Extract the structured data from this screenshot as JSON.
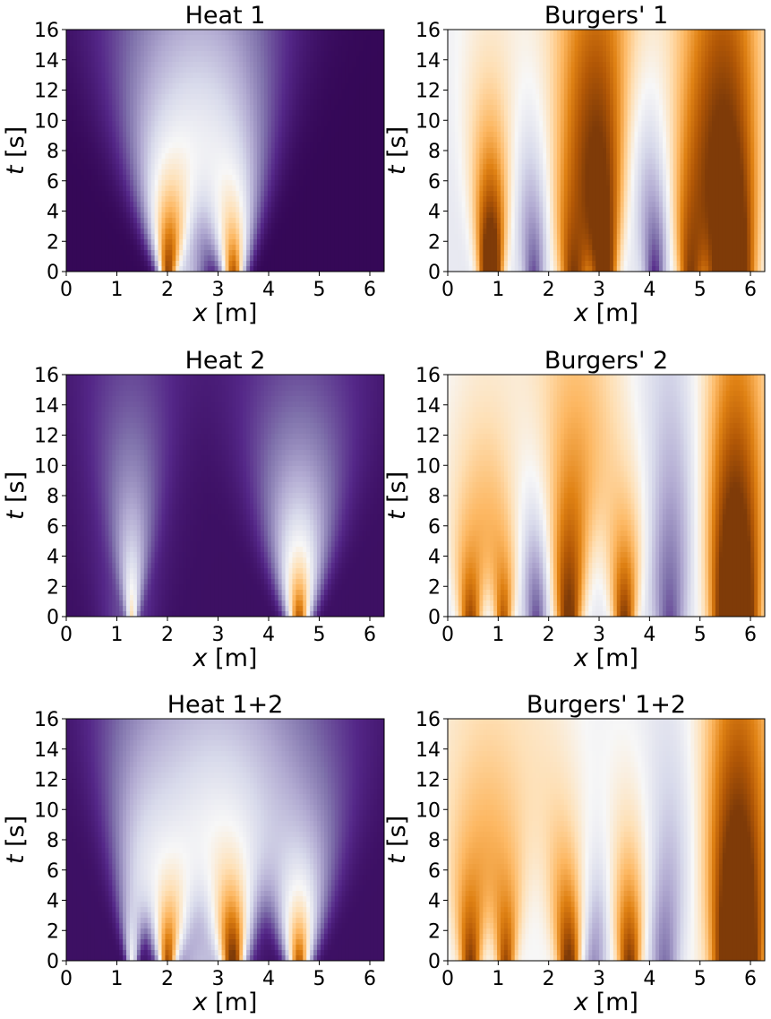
{
  "figure": {
    "colormap": [
      "#2d004b",
      "#542788",
      "#8073ac",
      "#b2abd2",
      "#d8daeb",
      "#f7f7f7",
      "#fee0b6",
      "#fdb863",
      "#e08214",
      "#b35806",
      "#7f3b08"
    ]
  },
  "chart_data": [
    {
      "type": "heatmap",
      "title": "Heat 1",
      "xlabel_var": "x",
      "xlabel_unit": "[m]",
      "ylabel_var": "t",
      "ylabel_unit": "[s]",
      "xlim": [
        0,
        6.283
      ],
      "ylim": [
        0,
        16
      ],
      "xticks": [
        0,
        1,
        2,
        3,
        4,
        5,
        6
      ],
      "yticks": [
        0,
        2,
        4,
        6,
        8,
        10,
        12,
        14,
        16
      ],
      "field": {
        "base": 0.02,
        "bumps": [
          {
            "x": 2.0,
            "amp": 0.78,
            "w0": 0.17,
            "grow": 0.07
          },
          {
            "x": 3.3,
            "amp": 0.88,
            "w0": 0.22,
            "grow": 0.06
          },
          {
            "x": 2.35,
            "amp": 0.35,
            "w0": 0.4,
            "grow": 0.08
          }
        ]
      }
    },
    {
      "type": "heatmap",
      "title": "Burgers' 1",
      "xlabel_var": "x",
      "xlabel_unit": "[m]",
      "ylabel_var": "t",
      "ylabel_unit": "[s]",
      "xlim": [
        0,
        6.283
      ],
      "ylim": [
        0,
        16
      ],
      "xticks": [
        0,
        1,
        2,
        3,
        4,
        5,
        6
      ],
      "yticks": [
        0,
        2,
        4,
        6,
        8,
        10,
        12,
        14,
        16
      ],
      "field": {
        "base": 0.45,
        "bumps": [
          {
            "x": 0.85,
            "amp": 0.85,
            "w0": 0.22,
            "grow": 0.03
          },
          {
            "x": 2.5,
            "amp": 0.55,
            "w0": 0.3,
            "grow": 0.04
          },
          {
            "x": 3.1,
            "amp": 0.7,
            "w0": 0.25,
            "grow": 0.03
          },
          {
            "x": 4.8,
            "amp": 0.5,
            "w0": 0.25,
            "grow": 0.04
          },
          {
            "x": 5.6,
            "amp": 0.95,
            "w0": 0.45,
            "grow": 0.02
          },
          {
            "x": 4.1,
            "amp": -0.35,
            "w0": 0.2,
            "grow": 0.03
          },
          {
            "x": 1.7,
            "amp": -0.3,
            "w0": 0.2,
            "grow": 0.03
          }
        ]
      }
    },
    {
      "type": "heatmap",
      "title": "Heat 2",
      "xlabel_var": "x",
      "xlabel_unit": "[m]",
      "ylabel_var": "t",
      "ylabel_unit": "[s]",
      "xlim": [
        0,
        6.283
      ],
      "ylim": [
        0,
        16
      ],
      "xticks": [
        0,
        1,
        2,
        3,
        4,
        5,
        6
      ],
      "yticks": [
        0,
        2,
        4,
        6,
        8,
        10,
        12,
        14,
        16
      ],
      "field": {
        "base": 0.04,
        "bumps": [
          {
            "x": 4.6,
            "amp": 0.85,
            "w0": 0.22,
            "grow": 0.07
          },
          {
            "x": 1.3,
            "amp": 0.45,
            "w0": 0.1,
            "grow": 0.05
          },
          {
            "x": 1.2,
            "amp": 0.12,
            "w0": 0.5,
            "grow": 0.05
          }
        ]
      }
    },
    {
      "type": "heatmap",
      "title": "Burgers' 2",
      "xlabel_var": "x",
      "xlabel_unit": "[m]",
      "ylabel_var": "t",
      "ylabel_unit": "[s]",
      "xlim": [
        0,
        6.283
      ],
      "ylim": [
        0,
        16
      ],
      "xticks": [
        0,
        1,
        2,
        3,
        4,
        5,
        6
      ],
      "yticks": [
        0,
        2,
        4,
        6,
        8,
        10,
        12,
        14,
        16
      ],
      "field": {
        "base": 0.45,
        "bumps": [
          {
            "x": 0.45,
            "amp": 0.5,
            "w0": 0.22,
            "grow": 0.04
          },
          {
            "x": 1.1,
            "amp": 0.45,
            "w0": 0.18,
            "grow": 0.04
          },
          {
            "x": 2.4,
            "amp": 0.6,
            "w0": 0.25,
            "grow": 0.04
          },
          {
            "x": 3.5,
            "amp": 0.55,
            "w0": 0.22,
            "grow": 0.04
          },
          {
            "x": 5.7,
            "amp": 0.95,
            "w0": 0.45,
            "grow": 0.02
          },
          {
            "x": 4.4,
            "amp": -0.3,
            "w0": 0.3,
            "grow": 0.03
          },
          {
            "x": 1.75,
            "amp": -0.3,
            "w0": 0.2,
            "grow": 0.03
          }
        ]
      }
    },
    {
      "type": "heatmap",
      "title": "Heat 1+2",
      "xlabel_var": "x",
      "xlabel_unit": "[m]",
      "ylabel_var": "t",
      "ylabel_unit": "[s]",
      "xlim": [
        0,
        6.283
      ],
      "ylim": [
        0,
        16
      ],
      "xticks": [
        0,
        1,
        2,
        3,
        4,
        5,
        6
      ],
      "yticks": [
        0,
        2,
        4,
        6,
        8,
        10,
        12,
        14,
        16
      ],
      "field": {
        "base": 0.04,
        "bumps": [
          {
            "x": 2.0,
            "amp": 0.78,
            "w0": 0.17,
            "grow": 0.07
          },
          {
            "x": 3.3,
            "amp": 0.88,
            "w0": 0.22,
            "grow": 0.06
          },
          {
            "x": 4.6,
            "amp": 0.85,
            "w0": 0.22,
            "grow": 0.07
          },
          {
            "x": 1.3,
            "amp": 0.45,
            "w0": 0.1,
            "grow": 0.05
          },
          {
            "x": 2.7,
            "amp": 0.3,
            "w0": 0.7,
            "grow": 0.05
          }
        ]
      }
    },
    {
      "type": "heatmap",
      "title": "Burgers' 1+2",
      "xlabel_var": "x",
      "xlabel_unit": "[m]",
      "ylabel_var": "t",
      "ylabel_unit": "[s]",
      "xlim": [
        0,
        6.283
      ],
      "ylim": [
        0,
        16
      ],
      "xticks": [
        0,
        1,
        2,
        3,
        4,
        5,
        6
      ],
      "yticks": [
        0,
        2,
        4,
        6,
        8,
        10,
        12,
        14,
        16
      ],
      "field": {
        "base": 0.5,
        "bumps": [
          {
            "x": 0.45,
            "amp": 0.5,
            "w0": 0.2,
            "grow": 0.04
          },
          {
            "x": 1.15,
            "amp": 0.45,
            "w0": 0.18,
            "grow": 0.04
          },
          {
            "x": 2.4,
            "amp": 0.55,
            "w0": 0.22,
            "grow": 0.04
          },
          {
            "x": 3.6,
            "amp": 0.5,
            "w0": 0.22,
            "grow": 0.04
          },
          {
            "x": 5.75,
            "amp": 0.95,
            "w0": 0.45,
            "grow": 0.02
          },
          {
            "x": 4.3,
            "amp": -0.3,
            "w0": 0.3,
            "grow": 0.03
          },
          {
            "x": 2.9,
            "amp": -0.25,
            "w0": 0.25,
            "grow": 0.03
          }
        ]
      }
    }
  ]
}
